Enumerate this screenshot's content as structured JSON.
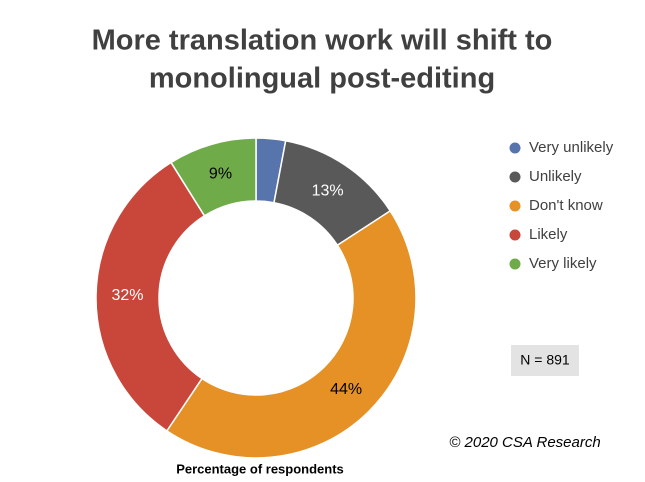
{
  "chart_data": {
    "type": "donut",
    "title": [
      "More translation work will shift to",
      "monolingual post-editing"
    ],
    "categories": [
      "Very unlikely",
      "Unlikely",
      "Don't know",
      "Likely",
      "Very likely"
    ],
    "values": [
      3,
      13,
      44,
      32,
      9
    ],
    "value_labels": [
      null,
      "13%",
      "44%",
      "32%",
      "9%"
    ],
    "colors": [
      "#5874ad",
      "#595959",
      "#e59126",
      "#c8463a",
      "#70ab4a"
    ],
    "legend": "right",
    "x_label": "Percentage of respondents",
    "annotations": [
      "N = 891",
      "© 2020 CSA Research"
    ]
  }
}
